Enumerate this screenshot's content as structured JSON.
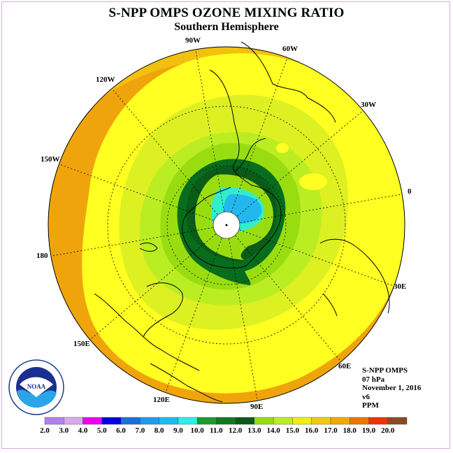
{
  "title": "S-NPP OMPS OZONE MIXING RATIO",
  "subtitle": "Southern Hemisphere",
  "longitude_labels": [
    {
      "text": "90W"
    },
    {
      "text": "60W"
    },
    {
      "text": "30W"
    },
    {
      "text": "0"
    },
    {
      "text": "30E"
    },
    {
      "text": "60E"
    },
    {
      "text": "90E"
    },
    {
      "text": "120E"
    },
    {
      "text": "150E"
    },
    {
      "text": "180"
    },
    {
      "text": "150W"
    },
    {
      "text": "120W"
    }
  ],
  "info": {
    "instrument": "S-NPP OMPS",
    "level": "07 hPa",
    "date": "November 1, 2016",
    "version": "v6",
    "units": "PPM"
  },
  "logo_text": "NOAA",
  "colorbar": {
    "ticks": [
      "2.0",
      "3.0",
      "4.0",
      "5.0",
      "6.0",
      "7.0",
      "8.0",
      "9.0",
      "10.0",
      "11.0",
      "12.0",
      "13.0",
      "14.0",
      "15.0",
      "16.0",
      "17.0",
      "18.0",
      "19.0",
      "20.0"
    ],
    "colors": [
      "#b27fee",
      "#d9a8ee",
      "#ee00ee",
      "#0000dd",
      "#1c70dd",
      "#1c9cee",
      "#1cbcee",
      "#2ceeee",
      "#1c9a2c",
      "#0f7a1e",
      "#085a18",
      "#99dd11",
      "#bbee22",
      "#eeee11",
      "#eecc11",
      "#eeaa00",
      "#ee7700",
      "#ee3300",
      "#8b4a22"
    ]
  },
  "field_colors": {
    "ring_outer": "#f2c10e",
    "ring_orange": "#f0a40c",
    "yellow": "#ffff22",
    "yellow_green": "#ddf022",
    "light_green": "#bbee22",
    "green": "#99dd11",
    "dark_green": "#076d1d",
    "darker_green": "#0a5a18",
    "cyan": "#30eecc",
    "blue": "#22b8ee"
  }
}
